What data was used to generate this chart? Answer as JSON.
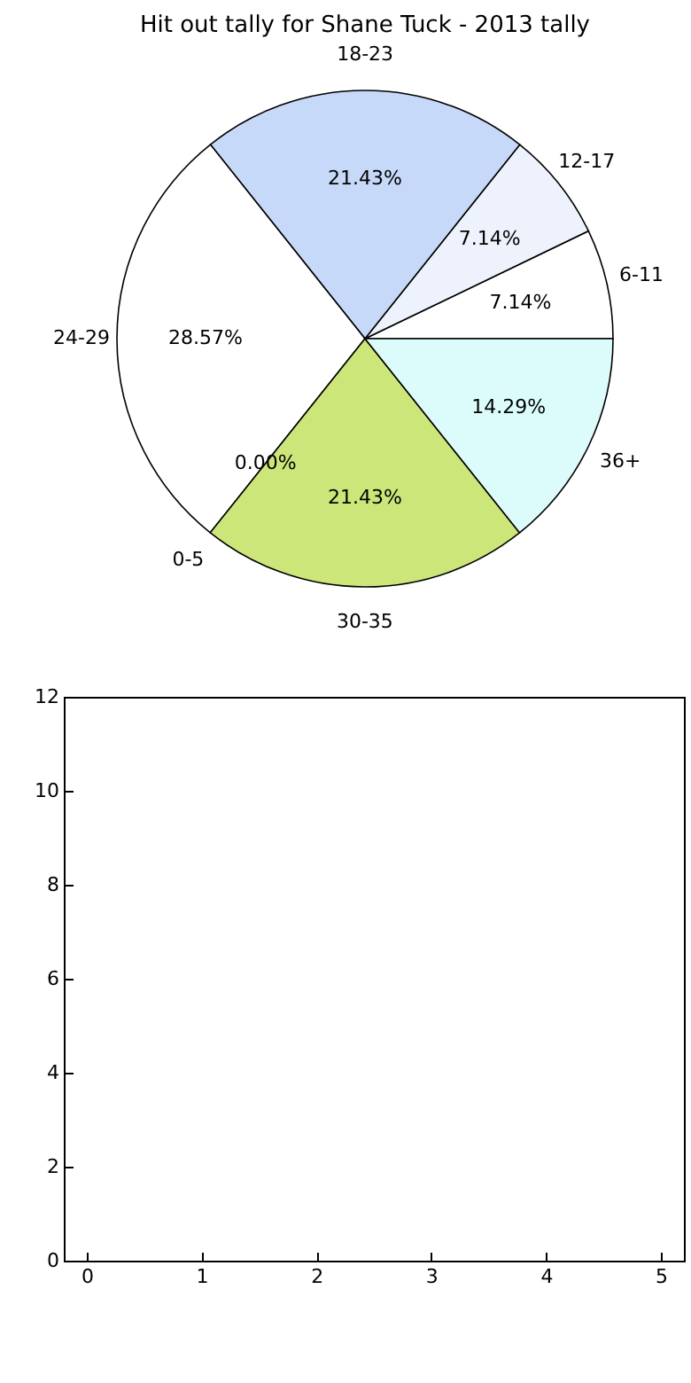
{
  "chart_data": [
    {
      "type": "pie",
      "title": "Hit out tally for Shane Tuck - 2013 tally",
      "categories": [
        "6-11",
        "12-17",
        "18-23",
        "24-29",
        "0-5",
        "30-35",
        "36+"
      ],
      "values": [
        7.14,
        7.14,
        21.43,
        28.57,
        0,
        21.43,
        14.29
      ],
      "colors": [
        "#ffffff",
        "#eef2fc",
        "#c6d9f8",
        "#ffffff",
        "#e0e0e0",
        "#cde67a",
        "#dcfcfc"
      ],
      "value_labels": [
        "7.14%",
        "7.14%",
        "21.43%",
        "28.57%",
        "0.00%",
        "21.43%",
        "14.29%"
      ]
    },
    {
      "type": "bar",
      "xlim": [
        -0.2,
        5.2
      ],
      "xticks": [
        0,
        1,
        2,
        3,
        4,
        5
      ],
      "ylim": [
        0,
        12
      ],
      "yticks": [
        0,
        2,
        4,
        6,
        8,
        10,
        12
      ]
    }
  ]
}
